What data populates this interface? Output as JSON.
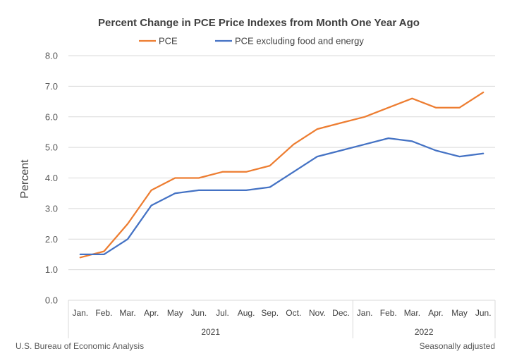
{
  "chart_data": {
    "type": "line",
    "title": "Percent Change in PCE Price Indexes from Month One Year Ago",
    "ylabel": "Percent",
    "xlabel": "",
    "ylim": [
      0,
      8
    ],
    "yticks": [
      "0.0",
      "1.0",
      "2.0",
      "3.0",
      "4.0",
      "5.0",
      "6.0",
      "7.0",
      "8.0"
    ],
    "categories": [
      "Jan.",
      "Feb.",
      "Mar.",
      "Apr.",
      "May",
      "Jun.",
      "Jul.",
      "Aug.",
      "Sep.",
      "Oct.",
      "Nov.",
      "Dec.",
      "Jan.",
      "Feb.",
      "Mar.",
      "Apr.",
      "May",
      "Jun."
    ],
    "year_groups": [
      {
        "label": "2021",
        "start": 0,
        "end": 11
      },
      {
        "label": "2022",
        "start": 12,
        "end": 17
      }
    ],
    "series": [
      {
        "name": "PCE",
        "color": "#ED7D31",
        "values": [
          1.4,
          1.6,
          2.5,
          3.6,
          4.0,
          4.0,
          4.2,
          4.2,
          4.4,
          5.1,
          5.6,
          5.8,
          6.0,
          6.3,
          6.6,
          6.3,
          6.3,
          6.8
        ]
      },
      {
        "name": "PCE excluding food and energy",
        "color": "#4472C4",
        "values": [
          1.5,
          1.5,
          2.0,
          3.1,
          3.5,
          3.6,
          3.6,
          3.6,
          3.7,
          4.2,
          4.7,
          4.9,
          5.1,
          5.3,
          5.2,
          4.9,
          4.7,
          4.8
        ]
      }
    ],
    "grid": true,
    "legend": "top"
  },
  "footer": {
    "source": "U.S. Bureau of Economic Analysis",
    "note": "Seasonally adjusted"
  }
}
